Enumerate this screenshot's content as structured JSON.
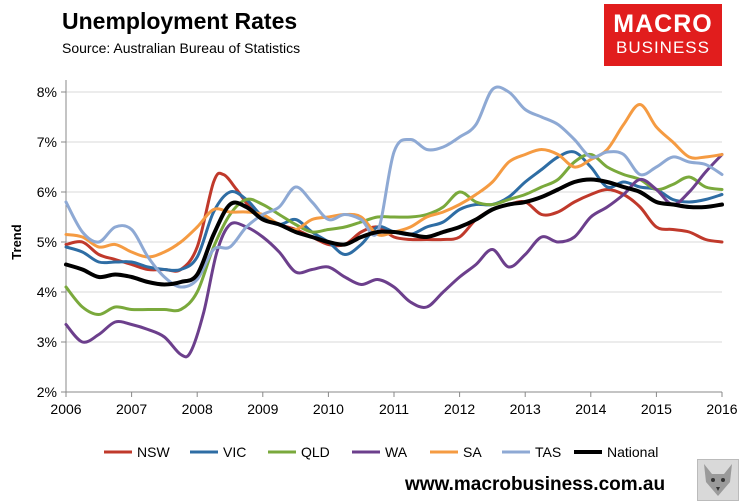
{
  "header": {
    "title": "Unemployment Rates",
    "subtitle": "Source: Australian Bureau of Statistics"
  },
  "logo": {
    "line1": "MACRO",
    "line2": "BUSINESS"
  },
  "footer": {
    "url": "www.macrobusiness.com.au"
  },
  "chart_data": {
    "type": "line",
    "ylabel": "Trend",
    "xlim": [
      2006,
      2016
    ],
    "ylim": [
      2,
      8
    ],
    "x_ticks": [
      "2006",
      "2007",
      "2008",
      "2009",
      "2010",
      "2011",
      "2012",
      "2013",
      "2014",
      "2015",
      "2016"
    ],
    "y_ticks": [
      "2%",
      "3%",
      "4%",
      "5%",
      "6%",
      "7%",
      "8%"
    ],
    "grid": "horizontal",
    "legend": "bottom",
    "series": [
      {
        "name": "NSW",
        "color": "#c0392b",
        "width": 3,
        "points": [
          [
            2006,
            4.95
          ],
          [
            2006.25,
            5.0
          ],
          [
            2006.5,
            4.75
          ],
          [
            2006.75,
            4.65
          ],
          [
            2007,
            4.55
          ],
          [
            2007.25,
            4.45
          ],
          [
            2007.5,
            4.45
          ],
          [
            2007.75,
            4.45
          ],
          [
            2008,
            4.9
          ],
          [
            2008.25,
            6.2
          ],
          [
            2008.4,
            6.35
          ],
          [
            2008.6,
            6.05
          ],
          [
            2008.8,
            5.7
          ],
          [
            2009,
            5.5
          ],
          [
            2009.25,
            5.35
          ],
          [
            2009.5,
            5.25
          ],
          [
            2009.75,
            5.1
          ],
          [
            2010,
            4.95
          ],
          [
            2010.25,
            4.95
          ],
          [
            2010.5,
            5.2
          ],
          [
            2010.75,
            5.3
          ],
          [
            2011,
            5.1
          ],
          [
            2011.25,
            5.05
          ],
          [
            2011.5,
            5.05
          ],
          [
            2011.75,
            5.05
          ],
          [
            2012,
            5.1
          ],
          [
            2012.25,
            5.45
          ],
          [
            2012.5,
            5.65
          ],
          [
            2012.75,
            5.75
          ],
          [
            2013,
            5.8
          ],
          [
            2013.25,
            5.55
          ],
          [
            2013.5,
            5.6
          ],
          [
            2013.75,
            5.8
          ],
          [
            2014,
            5.95
          ],
          [
            2014.25,
            6.05
          ],
          [
            2014.5,
            5.95
          ],
          [
            2014.75,
            5.7
          ],
          [
            2015,
            5.3
          ],
          [
            2015.25,
            5.25
          ],
          [
            2015.5,
            5.2
          ],
          [
            2015.75,
            5.05
          ],
          [
            2016,
            5.0
          ]
        ]
      },
      {
        "name": "VIC",
        "color": "#2e6da4",
        "width": 3,
        "points": [
          [
            2006,
            4.9
          ],
          [
            2006.25,
            4.8
          ],
          [
            2006.5,
            4.6
          ],
          [
            2006.75,
            4.6
          ],
          [
            2007,
            4.6
          ],
          [
            2007.25,
            4.5
          ],
          [
            2007.5,
            4.45
          ],
          [
            2007.75,
            4.45
          ],
          [
            2008,
            4.7
          ],
          [
            2008.25,
            5.6
          ],
          [
            2008.5,
            6.0
          ],
          [
            2008.75,
            5.85
          ],
          [
            2009,
            5.5
          ],
          [
            2009.25,
            5.35
          ],
          [
            2009.5,
            5.45
          ],
          [
            2009.75,
            5.2
          ],
          [
            2010,
            5.0
          ],
          [
            2010.25,
            4.75
          ],
          [
            2010.5,
            4.95
          ],
          [
            2010.75,
            5.3
          ],
          [
            2011,
            5.2
          ],
          [
            2011.25,
            5.15
          ],
          [
            2011.5,
            5.3
          ],
          [
            2011.75,
            5.4
          ],
          [
            2012,
            5.65
          ],
          [
            2012.25,
            5.75
          ],
          [
            2012.5,
            5.75
          ],
          [
            2012.75,
            5.9
          ],
          [
            2013,
            6.2
          ],
          [
            2013.25,
            6.45
          ],
          [
            2013.5,
            6.7
          ],
          [
            2013.75,
            6.8
          ],
          [
            2014,
            6.5
          ],
          [
            2014.25,
            6.1
          ],
          [
            2014.5,
            6.2
          ],
          [
            2014.75,
            6.1
          ],
          [
            2015,
            6.05
          ],
          [
            2015.25,
            5.85
          ],
          [
            2015.5,
            5.8
          ],
          [
            2015.75,
            5.85
          ],
          [
            2016,
            5.95
          ]
        ]
      },
      {
        "name": "QLD",
        "color": "#7aa93c",
        "width": 3,
        "points": [
          [
            2006,
            4.1
          ],
          [
            2006.25,
            3.7
          ],
          [
            2006.5,
            3.55
          ],
          [
            2006.75,
            3.7
          ],
          [
            2007,
            3.65
          ],
          [
            2007.25,
            3.65
          ],
          [
            2007.5,
            3.65
          ],
          [
            2007.75,
            3.65
          ],
          [
            2008,
            4.0
          ],
          [
            2008.25,
            4.9
          ],
          [
            2008.5,
            5.55
          ],
          [
            2008.75,
            5.85
          ],
          [
            2009,
            5.75
          ],
          [
            2009.25,
            5.55
          ],
          [
            2009.5,
            5.35
          ],
          [
            2009.75,
            5.2
          ],
          [
            2010,
            5.25
          ],
          [
            2010.25,
            5.3
          ],
          [
            2010.5,
            5.4
          ],
          [
            2010.75,
            5.5
          ],
          [
            2011,
            5.5
          ],
          [
            2011.25,
            5.5
          ],
          [
            2011.5,
            5.55
          ],
          [
            2011.75,
            5.7
          ],
          [
            2012,
            6.0
          ],
          [
            2012.25,
            5.8
          ],
          [
            2012.5,
            5.75
          ],
          [
            2012.75,
            5.85
          ],
          [
            2013,
            5.95
          ],
          [
            2013.25,
            6.1
          ],
          [
            2013.5,
            6.25
          ],
          [
            2013.75,
            6.6
          ],
          [
            2014,
            6.75
          ],
          [
            2014.25,
            6.5
          ],
          [
            2014.5,
            6.35
          ],
          [
            2014.75,
            6.25
          ],
          [
            2015,
            6.05
          ],
          [
            2015.25,
            6.15
          ],
          [
            2015.5,
            6.3
          ],
          [
            2015.75,
            6.1
          ],
          [
            2016,
            6.05
          ]
        ]
      },
      {
        "name": "WA",
        "color": "#6c3f8c",
        "width": 3,
        "points": [
          [
            2006,
            3.35
          ],
          [
            2006.25,
            3.0
          ],
          [
            2006.5,
            3.15
          ],
          [
            2006.75,
            3.4
          ],
          [
            2007,
            3.35
          ],
          [
            2007.25,
            3.25
          ],
          [
            2007.5,
            3.1
          ],
          [
            2007.75,
            2.75
          ],
          [
            2007.9,
            2.8
          ],
          [
            2008.1,
            3.6
          ],
          [
            2008.3,
            4.8
          ],
          [
            2008.5,
            5.35
          ],
          [
            2008.75,
            5.3
          ],
          [
            2009,
            5.1
          ],
          [
            2009.25,
            4.8
          ],
          [
            2009.5,
            4.4
          ],
          [
            2009.75,
            4.45
          ],
          [
            2010,
            4.5
          ],
          [
            2010.25,
            4.3
          ],
          [
            2010.5,
            4.15
          ],
          [
            2010.75,
            4.25
          ],
          [
            2011,
            4.1
          ],
          [
            2011.25,
            3.8
          ],
          [
            2011.5,
            3.7
          ],
          [
            2011.75,
            4.0
          ],
          [
            2012,
            4.3
          ],
          [
            2012.25,
            4.55
          ],
          [
            2012.5,
            4.85
          ],
          [
            2012.75,
            4.5
          ],
          [
            2013,
            4.75
          ],
          [
            2013.25,
            5.1
          ],
          [
            2013.5,
            5.0
          ],
          [
            2013.75,
            5.1
          ],
          [
            2014,
            5.5
          ],
          [
            2014.25,
            5.7
          ],
          [
            2014.5,
            5.95
          ],
          [
            2014.75,
            6.25
          ],
          [
            2015,
            6.05
          ],
          [
            2015.25,
            5.75
          ],
          [
            2015.5,
            6.0
          ],
          [
            2015.75,
            6.4
          ],
          [
            2016,
            6.75
          ]
        ]
      },
      {
        "name": "SA",
        "color": "#f59b42",
        "width": 3,
        "points": [
          [
            2006,
            5.15
          ],
          [
            2006.25,
            5.1
          ],
          [
            2006.5,
            4.9
          ],
          [
            2006.75,
            4.95
          ],
          [
            2007,
            4.8
          ],
          [
            2007.25,
            4.7
          ],
          [
            2007.5,
            4.8
          ],
          [
            2007.75,
            5.0
          ],
          [
            2008,
            5.3
          ],
          [
            2008.25,
            5.65
          ],
          [
            2008.5,
            5.6
          ],
          [
            2008.75,
            5.6
          ],
          [
            2009,
            5.55
          ],
          [
            2009.25,
            5.35
          ],
          [
            2009.5,
            5.25
          ],
          [
            2009.75,
            5.45
          ],
          [
            2010,
            5.5
          ],
          [
            2010.25,
            5.55
          ],
          [
            2010.5,
            5.5
          ],
          [
            2010.75,
            5.15
          ],
          [
            2011,
            5.2
          ],
          [
            2011.25,
            5.3
          ],
          [
            2011.5,
            5.5
          ],
          [
            2011.75,
            5.6
          ],
          [
            2012,
            5.75
          ],
          [
            2012.25,
            5.95
          ],
          [
            2012.5,
            6.2
          ],
          [
            2012.75,
            6.6
          ],
          [
            2013,
            6.75
          ],
          [
            2013.25,
            6.85
          ],
          [
            2013.5,
            6.75
          ],
          [
            2013.75,
            6.5
          ],
          [
            2014,
            6.65
          ],
          [
            2014.25,
            6.85
          ],
          [
            2014.5,
            7.35
          ],
          [
            2014.75,
            7.75
          ],
          [
            2015,
            7.3
          ],
          [
            2015.25,
            7.0
          ],
          [
            2015.5,
            6.7
          ],
          [
            2015.75,
            6.7
          ],
          [
            2016,
            6.75
          ]
        ]
      },
      {
        "name": "TAS",
        "color": "#8ea9d4",
        "width": 3,
        "points": [
          [
            2006,
            5.8
          ],
          [
            2006.25,
            5.2
          ],
          [
            2006.5,
            5.0
          ],
          [
            2006.75,
            5.3
          ],
          [
            2007,
            5.25
          ],
          [
            2007.25,
            4.7
          ],
          [
            2007.5,
            4.3
          ],
          [
            2007.75,
            4.1
          ],
          [
            2008,
            4.25
          ],
          [
            2008.25,
            4.85
          ],
          [
            2008.5,
            4.9
          ],
          [
            2008.75,
            5.3
          ],
          [
            2009,
            5.55
          ],
          [
            2009.25,
            5.7
          ],
          [
            2009.5,
            6.1
          ],
          [
            2009.75,
            5.8
          ],
          [
            2010,
            5.45
          ],
          [
            2010.25,
            5.55
          ],
          [
            2010.5,
            5.45
          ],
          [
            2010.75,
            5.2
          ],
          [
            2011,
            6.8
          ],
          [
            2011.25,
            7.05
          ],
          [
            2011.5,
            6.85
          ],
          [
            2011.75,
            6.9
          ],
          [
            2012,
            7.1
          ],
          [
            2012.25,
            7.35
          ],
          [
            2012.5,
            8.05
          ],
          [
            2012.75,
            8.0
          ],
          [
            2013,
            7.65
          ],
          [
            2013.25,
            7.5
          ],
          [
            2013.5,
            7.35
          ],
          [
            2013.75,
            7.05
          ],
          [
            2014,
            6.7
          ],
          [
            2014.25,
            6.8
          ],
          [
            2014.5,
            6.75
          ],
          [
            2014.75,
            6.35
          ],
          [
            2015,
            6.5
          ],
          [
            2015.25,
            6.7
          ],
          [
            2015.5,
            6.6
          ],
          [
            2015.75,
            6.55
          ],
          [
            2016,
            6.35
          ]
        ]
      },
      {
        "name": "National",
        "color": "#000000",
        "width": 4,
        "points": [
          [
            2006,
            4.55
          ],
          [
            2006.25,
            4.45
          ],
          [
            2006.5,
            4.3
          ],
          [
            2006.75,
            4.35
          ],
          [
            2007,
            4.3
          ],
          [
            2007.25,
            4.2
          ],
          [
            2007.5,
            4.15
          ],
          [
            2007.75,
            4.2
          ],
          [
            2008,
            4.35
          ],
          [
            2008.25,
            5.15
          ],
          [
            2008.5,
            5.75
          ],
          [
            2008.75,
            5.7
          ],
          [
            2009,
            5.45
          ],
          [
            2009.25,
            5.35
          ],
          [
            2009.5,
            5.2
          ],
          [
            2009.75,
            5.1
          ],
          [
            2010,
            5.0
          ],
          [
            2010.25,
            4.95
          ],
          [
            2010.5,
            5.1
          ],
          [
            2010.75,
            5.2
          ],
          [
            2011,
            5.2
          ],
          [
            2011.25,
            5.15
          ],
          [
            2011.5,
            5.1
          ],
          [
            2011.75,
            5.2
          ],
          [
            2012,
            5.3
          ],
          [
            2012.25,
            5.45
          ],
          [
            2012.5,
            5.65
          ],
          [
            2012.75,
            5.75
          ],
          [
            2013,
            5.8
          ],
          [
            2013.25,
            5.9
          ],
          [
            2013.5,
            6.05
          ],
          [
            2013.75,
            6.2
          ],
          [
            2014,
            6.25
          ],
          [
            2014.25,
            6.2
          ],
          [
            2014.5,
            6.1
          ],
          [
            2014.75,
            6.0
          ],
          [
            2015,
            5.8
          ],
          [
            2015.25,
            5.75
          ],
          [
            2015.5,
            5.7
          ],
          [
            2015.75,
            5.7
          ],
          [
            2016,
            5.75
          ]
        ]
      }
    ]
  }
}
